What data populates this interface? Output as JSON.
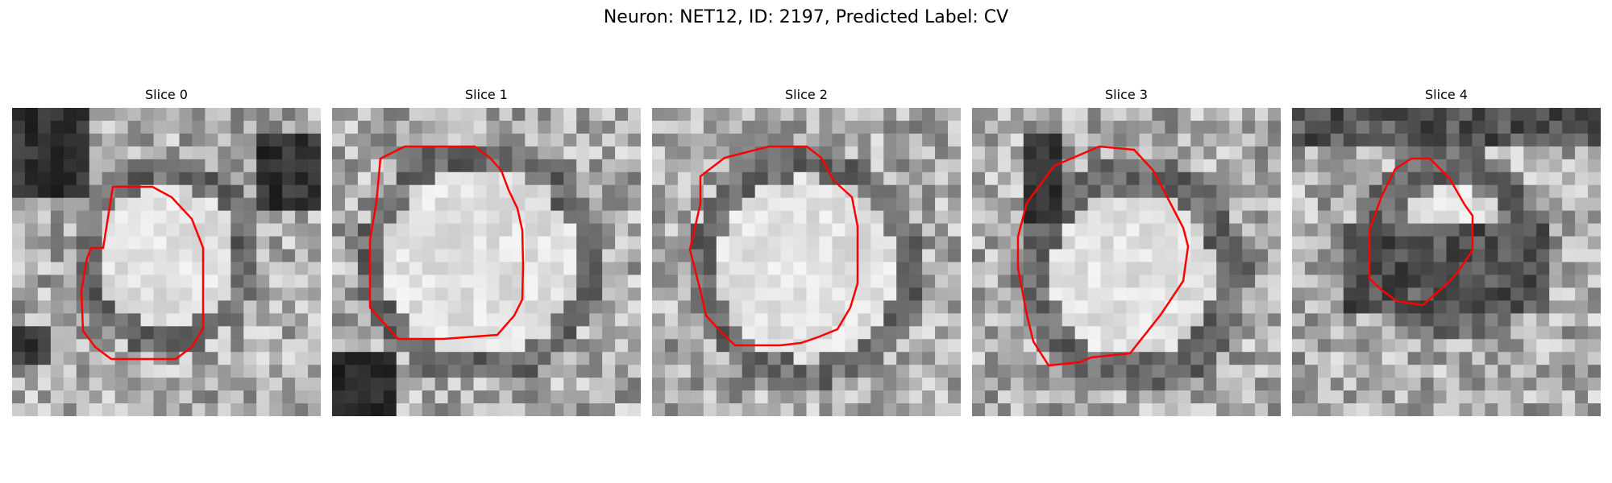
{
  "figure": {
    "title": "Neuron: NET12, ID: 2197, Predicted Label: CV"
  },
  "panels": [
    {
      "title": "Slice 0"
    },
    {
      "title": "Slice 1"
    },
    {
      "title": "Slice 2"
    },
    {
      "title": "Slice 3"
    },
    {
      "title": "Slice 4"
    }
  ],
  "colors": {
    "contour": "#ff0000",
    "background": "#ffffff"
  }
}
